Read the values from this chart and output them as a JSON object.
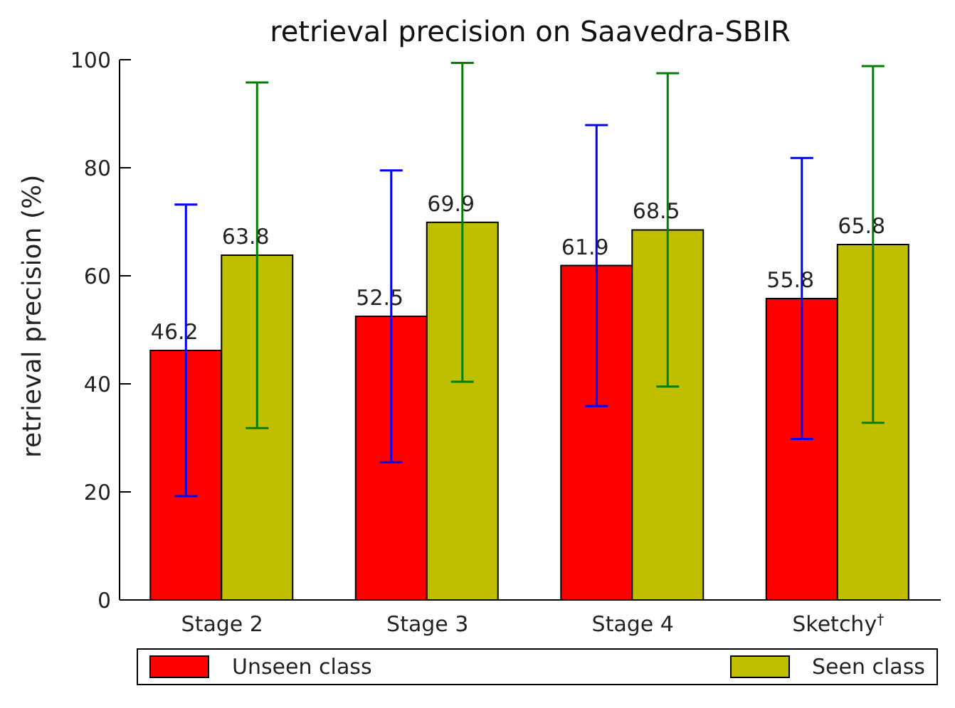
{
  "chart_data": {
    "type": "bar",
    "title": "retrieval precision on Saavedra-SBIR",
    "ylabel": "retrieval precision (%)",
    "categories": [
      "Stage 2",
      "Stage 3",
      "Stage 4",
      "Sketchy$^{†}$"
    ],
    "series": [
      {
        "name": "Unseen class",
        "color": "#ff0000",
        "values": [
          46.2,
          52.5,
          61.9,
          55.8
        ],
        "errors": [
          27,
          27,
          26,
          26
        ]
      },
      {
        "name": "Seen class",
        "color": "#bfbf00",
        "values": [
          63.8,
          69.9,
          68.5,
          65.8
        ],
        "errors": [
          32,
          29.5,
          29,
          33
        ]
      }
    ],
    "ylim": [
      0,
      100
    ],
    "yticks": [
      0,
      20,
      40,
      60,
      80,
      100
    ],
    "grid": false,
    "legend": "bottom",
    "data_labels": true
  }
}
